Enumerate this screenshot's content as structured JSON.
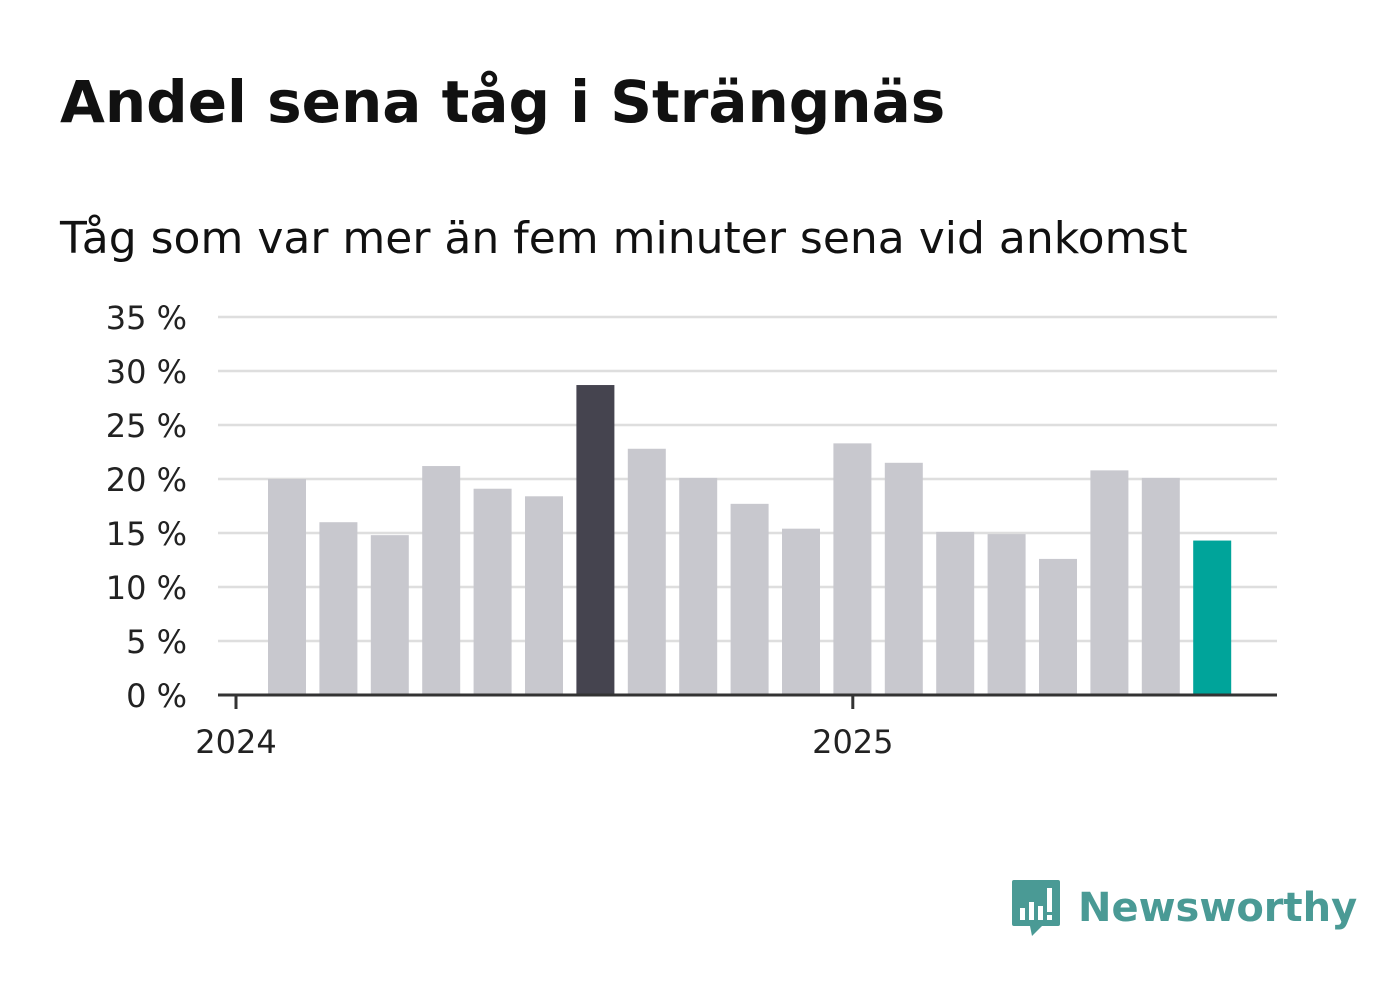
{
  "title": "Andel sena tåg i Strängnäs",
  "subtitle": "Tåg som var mer än fem minuter sena vid ankomst",
  "brand": {
    "name": "Newsworthy"
  },
  "colors": {
    "default_bar": "#c8c8ce",
    "max_bar": "#45444f",
    "latest_bar": "#00a49a",
    "grid": "#dedede",
    "axis": "#333333",
    "brand": "#4a9a95"
  },
  "chart_data": {
    "type": "bar",
    "title": "Andel sena tåg i Strängnäs",
    "subtitle": "Tåg som var mer än fem minuter sena vid ankomst",
    "xlabel": "",
    "ylabel": "",
    "x_tick_labels": [
      {
        "label": "2024",
        "index": 0
      },
      {
        "label": "2025",
        "index": 12
      }
    ],
    "values": [
      20,
      16,
      14.8,
      21.2,
      19.1,
      18.4,
      28.7,
      22.8,
      20.1,
      17.7,
      15.4,
      23.3,
      21.5,
      15.1,
      14.9,
      12.6,
      20.8,
      20.1,
      14.3
    ],
    "highlight": {
      "max_index": 6,
      "latest_index": 18
    },
    "ylim": [
      0,
      35
    ],
    "y_ticks": [
      0,
      5,
      10,
      15,
      20,
      25,
      30,
      35
    ],
    "y_tick_labels": [
      "0 %",
      "5 %",
      "10 %",
      "15 %",
      "20 %",
      "25 %",
      "30 %",
      "35 %"
    ],
    "grid": true,
    "legend": "none"
  }
}
